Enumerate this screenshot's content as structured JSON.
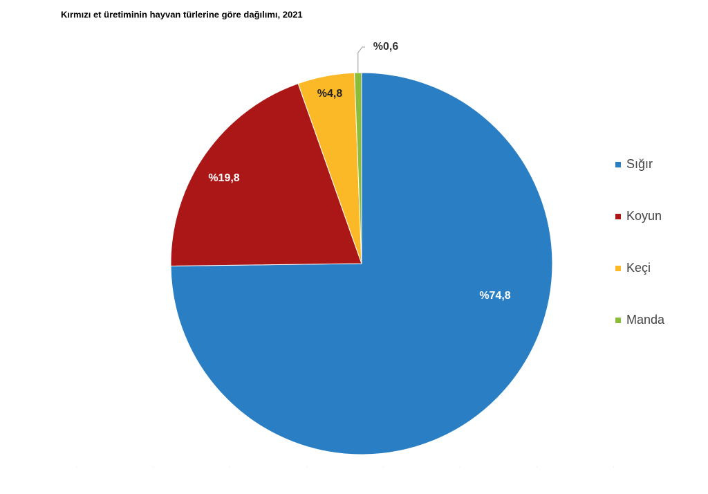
{
  "chart_data": {
    "type": "pie",
    "title": "Kırmızı et üretiminin hayvan türlerine göre dağılımı, 2021",
    "categories": [
      "Sığır",
      "Koyun",
      "Keçi",
      "Manda"
    ],
    "values": [
      74.8,
      19.8,
      4.8,
      0.6
    ],
    "value_labels": [
      "%74,8",
      "%19,8",
      "%4,8",
      "%0,6"
    ],
    "colors": [
      "#2a7fc4",
      "#ab1717",
      "#fbb928",
      "#8cbd3a"
    ],
    "legend": "right"
  }
}
